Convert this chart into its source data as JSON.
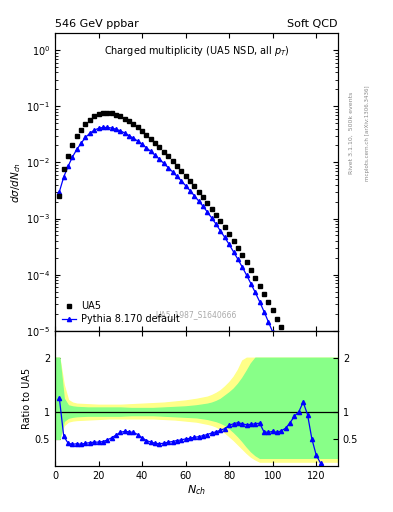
{
  "title_left": "546 GeV ppbar",
  "title_right": "Soft QCD",
  "plot_title": "Charged multiplicity (UA5 NSD, all p_{T})",
  "xlabel": "N_{ch}",
  "ylabel_main": "dσ/dN_{ch}",
  "ylabel_ratio": "Ratio to UA5",
  "right_label_top": "Rivet 3.1.10,  500k events",
  "right_label_bottom": "mcplots.cern.ch [arXiv:1306.3436]",
  "watermark": "UA5_1987_S1640666",
  "ua5_x": [
    2,
    4,
    6,
    8,
    10,
    12,
    14,
    16,
    18,
    20,
    22,
    24,
    26,
    28,
    30,
    32,
    34,
    36,
    38,
    40,
    42,
    44,
    46,
    48,
    50,
    52,
    54,
    56,
    58,
    60,
    62,
    64,
    66,
    68,
    70,
    72,
    74,
    76,
    78,
    80,
    82,
    84,
    86,
    88,
    90,
    92,
    94,
    96,
    98,
    100,
    102,
    104,
    106,
    108,
    110,
    112,
    114,
    116,
    118,
    120,
    122
  ],
  "ua5_y": [
    0.0025,
    0.0075,
    0.013,
    0.02,
    0.029,
    0.038,
    0.048,
    0.058,
    0.066,
    0.072,
    0.076,
    0.077,
    0.075,
    0.071,
    0.066,
    0.06,
    0.054,
    0.048,
    0.042,
    0.036,
    0.031,
    0.026,
    0.022,
    0.0185,
    0.0155,
    0.0128,
    0.0106,
    0.0087,
    0.0071,
    0.0058,
    0.0047,
    0.0038,
    0.003,
    0.0024,
    0.0019,
    0.0015,
    0.00117,
    0.0009,
    0.0007,
    0.00053,
    0.0004,
    0.0003,
    0.000225,
    0.000165,
    0.00012,
    8.8e-05,
    6.3e-05,
    4.5e-05,
    3.2e-05,
    2.3e-05,
    1.6e-05,
    1.15e-05,
    8e-06,
    5.5e-06,
    3.8e-06,
    2.6e-06,
    1.8e-06,
    1.2e-06,
    8.5e-07,
    5.8e-07,
    3.8e-07
  ],
  "pythia_x": [
    2,
    4,
    6,
    8,
    10,
    12,
    14,
    16,
    18,
    20,
    22,
    24,
    26,
    28,
    30,
    32,
    34,
    36,
    38,
    40,
    42,
    44,
    46,
    48,
    50,
    52,
    54,
    56,
    58,
    60,
    62,
    64,
    66,
    68,
    70,
    72,
    74,
    76,
    78,
    80,
    82,
    84,
    86,
    88,
    90,
    92,
    94,
    96,
    98,
    100,
    102,
    104,
    106,
    108,
    110,
    112,
    114,
    116,
    118,
    120,
    122
  ],
  "pythia_y": [
    0.003,
    0.0055,
    0.0085,
    0.0125,
    0.017,
    0.022,
    0.028,
    0.033,
    0.0375,
    0.0405,
    0.042,
    0.042,
    0.041,
    0.039,
    0.0365,
    0.0335,
    0.03,
    0.027,
    0.024,
    0.021,
    0.0182,
    0.0157,
    0.0134,
    0.0114,
    0.0096,
    0.0081,
    0.0068,
    0.00565,
    0.0047,
    0.00385,
    0.00315,
    0.00255,
    0.00205,
    0.00165,
    0.0013,
    0.00102,
    0.00079,
    0.0006,
    0.00046,
    0.000345,
    0.000255,
    0.000188,
    0.000137,
    9.8e-05,
    6.9e-05,
    4.8e-05,
    3.3e-05,
    2.2e-05,
    1.45e-05,
    9.5e-06,
    6.2e-06,
    3.9e-06,
    2.4e-06,
    1.45e-06,
    8.5e-07,
    4.8e-07,
    2.6e-07,
    1.4e-07,
    7e-08,
    3.5e-08,
    1.7e-08
  ],
  "ua5_color": "black",
  "pythia_color": "blue",
  "ylim_main": [
    1e-05,
    2.0
  ],
  "xlim": [
    0,
    130
  ],
  "ratio_ylim": [
    0.0,
    2.5
  ],
  "ratio_yticks": [
    0.5,
    1.0,
    2.0
  ],
  "ratio_ytick_labels": [
    "0.5",
    "1",
    "2"
  ],
  "yellow_band_x": [
    0,
    2,
    4,
    6,
    8,
    10,
    15,
    20,
    25,
    30,
    35,
    40,
    45,
    50,
    55,
    60,
    65,
    70,
    72,
    74,
    76,
    78,
    80,
    82,
    84,
    86,
    88,
    90,
    92,
    94,
    96,
    98,
    100,
    102,
    104,
    106,
    108,
    110,
    112,
    114,
    116,
    118,
    120,
    122,
    124,
    126,
    128,
    130
  ],
  "yellow_lo": [
    0.5,
    0.5,
    0.75,
    0.82,
    0.84,
    0.85,
    0.86,
    0.87,
    0.88,
    0.88,
    0.88,
    0.88,
    0.88,
    0.87,
    0.86,
    0.84,
    0.82,
    0.78,
    0.76,
    0.73,
    0.68,
    0.62,
    0.55,
    0.48,
    0.4,
    0.32,
    0.24,
    0.17,
    0.12,
    0.08,
    0.08,
    0.08,
    0.08,
    0.08,
    0.08,
    0.08,
    0.08,
    0.08,
    0.08,
    0.08,
    0.08,
    0.08,
    0.08,
    0.08,
    0.08,
    0.08,
    0.08,
    0.08
  ],
  "yellow_hi": [
    2.0,
    2.0,
    1.5,
    1.22,
    1.17,
    1.15,
    1.14,
    1.13,
    1.13,
    1.13,
    1.14,
    1.15,
    1.16,
    1.17,
    1.19,
    1.21,
    1.24,
    1.28,
    1.31,
    1.35,
    1.4,
    1.47,
    1.55,
    1.65,
    1.78,
    1.95,
    2.0,
    2.0,
    2.0,
    2.0,
    2.0,
    2.0,
    2.0,
    2.0,
    2.0,
    2.0,
    2.0,
    2.0,
    2.0,
    2.0,
    2.0,
    2.0,
    2.0,
    2.0,
    2.0,
    2.0,
    2.0,
    2.0
  ],
  "green_band_x": [
    0,
    2,
    4,
    6,
    8,
    10,
    15,
    20,
    25,
    30,
    35,
    40,
    45,
    50,
    55,
    60,
    65,
    70,
    72,
    74,
    76,
    78,
    80,
    82,
    84,
    86,
    88,
    90,
    92,
    94,
    96,
    98,
    100,
    102,
    104,
    106,
    108,
    110,
    112,
    114,
    116,
    118,
    120,
    122,
    124,
    126,
    128,
    130
  ],
  "green_lo": [
    0.5,
    0.5,
    0.83,
    0.89,
    0.91,
    0.92,
    0.93,
    0.93,
    0.93,
    0.93,
    0.94,
    0.94,
    0.94,
    0.93,
    0.92,
    0.91,
    0.9,
    0.87,
    0.85,
    0.83,
    0.8,
    0.76,
    0.7,
    0.63,
    0.55,
    0.46,
    0.36,
    0.27,
    0.2,
    0.15,
    0.15,
    0.15,
    0.15,
    0.15,
    0.15,
    0.15,
    0.15,
    0.15,
    0.15,
    0.15,
    0.15,
    0.15,
    0.15,
    0.15,
    0.15,
    0.15,
    0.15,
    0.15
  ],
  "green_hi": [
    2.0,
    2.0,
    1.25,
    1.12,
    1.1,
    1.09,
    1.08,
    1.08,
    1.08,
    1.08,
    1.07,
    1.07,
    1.07,
    1.08,
    1.09,
    1.1,
    1.12,
    1.15,
    1.17,
    1.2,
    1.24,
    1.3,
    1.36,
    1.43,
    1.52,
    1.63,
    1.76,
    1.9,
    2.0,
    2.0,
    2.0,
    2.0,
    2.0,
    2.0,
    2.0,
    2.0,
    2.0,
    2.0,
    2.0,
    2.0,
    2.0,
    2.0,
    2.0,
    2.0,
    2.0,
    2.0,
    2.0,
    2.0
  ],
  "ratio_line_x": [
    2,
    4,
    6,
    8,
    10,
    12,
    14,
    16,
    18,
    20,
    22,
    24,
    26,
    28,
    30,
    32,
    34,
    36,
    38,
    40,
    42,
    44,
    46,
    48,
    50,
    52,
    54,
    56,
    58,
    60,
    62,
    64,
    66,
    68,
    70,
    72,
    74,
    76,
    78,
    80,
    82,
    84,
    86,
    88,
    90,
    92,
    94,
    96,
    98,
    100,
    102,
    104,
    106,
    108,
    110,
    112,
    114,
    116,
    118,
    120,
    122
  ],
  "ratio_line_y": [
    1.25,
    0.55,
    0.42,
    0.4,
    0.41,
    0.4,
    0.42,
    0.43,
    0.44,
    0.44,
    0.45,
    0.48,
    0.52,
    0.57,
    0.62,
    0.64,
    0.63,
    0.62,
    0.58,
    0.52,
    0.47,
    0.44,
    0.42,
    0.41,
    0.42,
    0.44,
    0.45,
    0.47,
    0.48,
    0.5,
    0.51,
    0.53,
    0.54,
    0.56,
    0.58,
    0.61,
    0.63,
    0.66,
    0.69,
    0.75,
    0.78,
    0.8,
    0.78,
    0.76,
    0.77,
    0.78,
    0.79,
    0.63,
    0.62,
    0.64,
    0.62,
    0.65,
    0.7,
    0.8,
    0.92,
    1.0,
    1.18,
    0.95,
    0.5,
    0.2,
    0.05
  ]
}
